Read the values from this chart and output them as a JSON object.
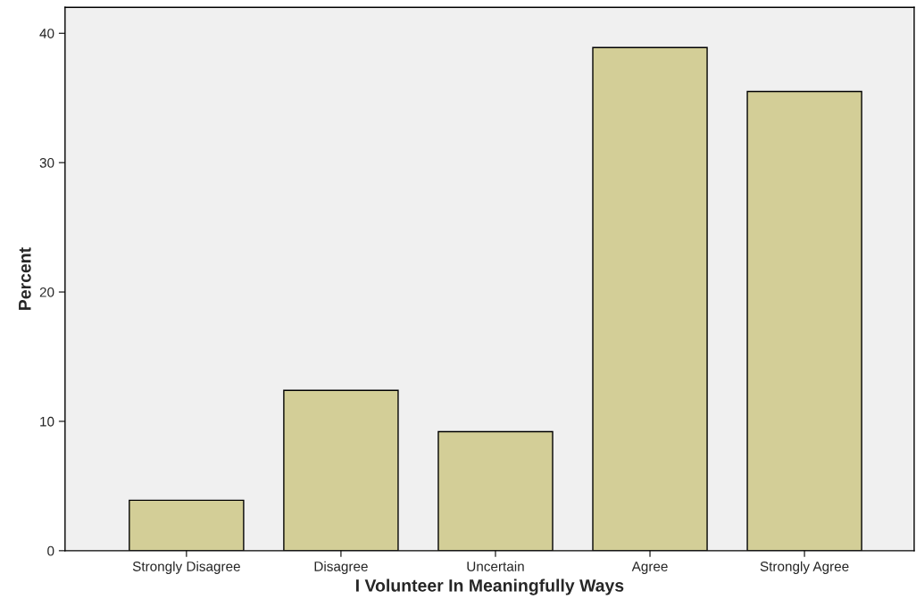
{
  "chart_data": {
    "type": "bar",
    "xlabel": "I Volunteer In Meaningfully Ways",
    "ylabel": "Percent",
    "categories": [
      "Strongly Disagree",
      "Disagree",
      "Uncertain",
      "Agree",
      "Strongly Agree"
    ],
    "values": [
      3.9,
      12.4,
      9.2,
      38.9,
      35.5
    ],
    "color": "#d3ce97",
    "ylim": [
      0,
      42
    ],
    "yticks": [
      0,
      10,
      20,
      30,
      40
    ],
    "grid": false,
    "legend": false
  }
}
